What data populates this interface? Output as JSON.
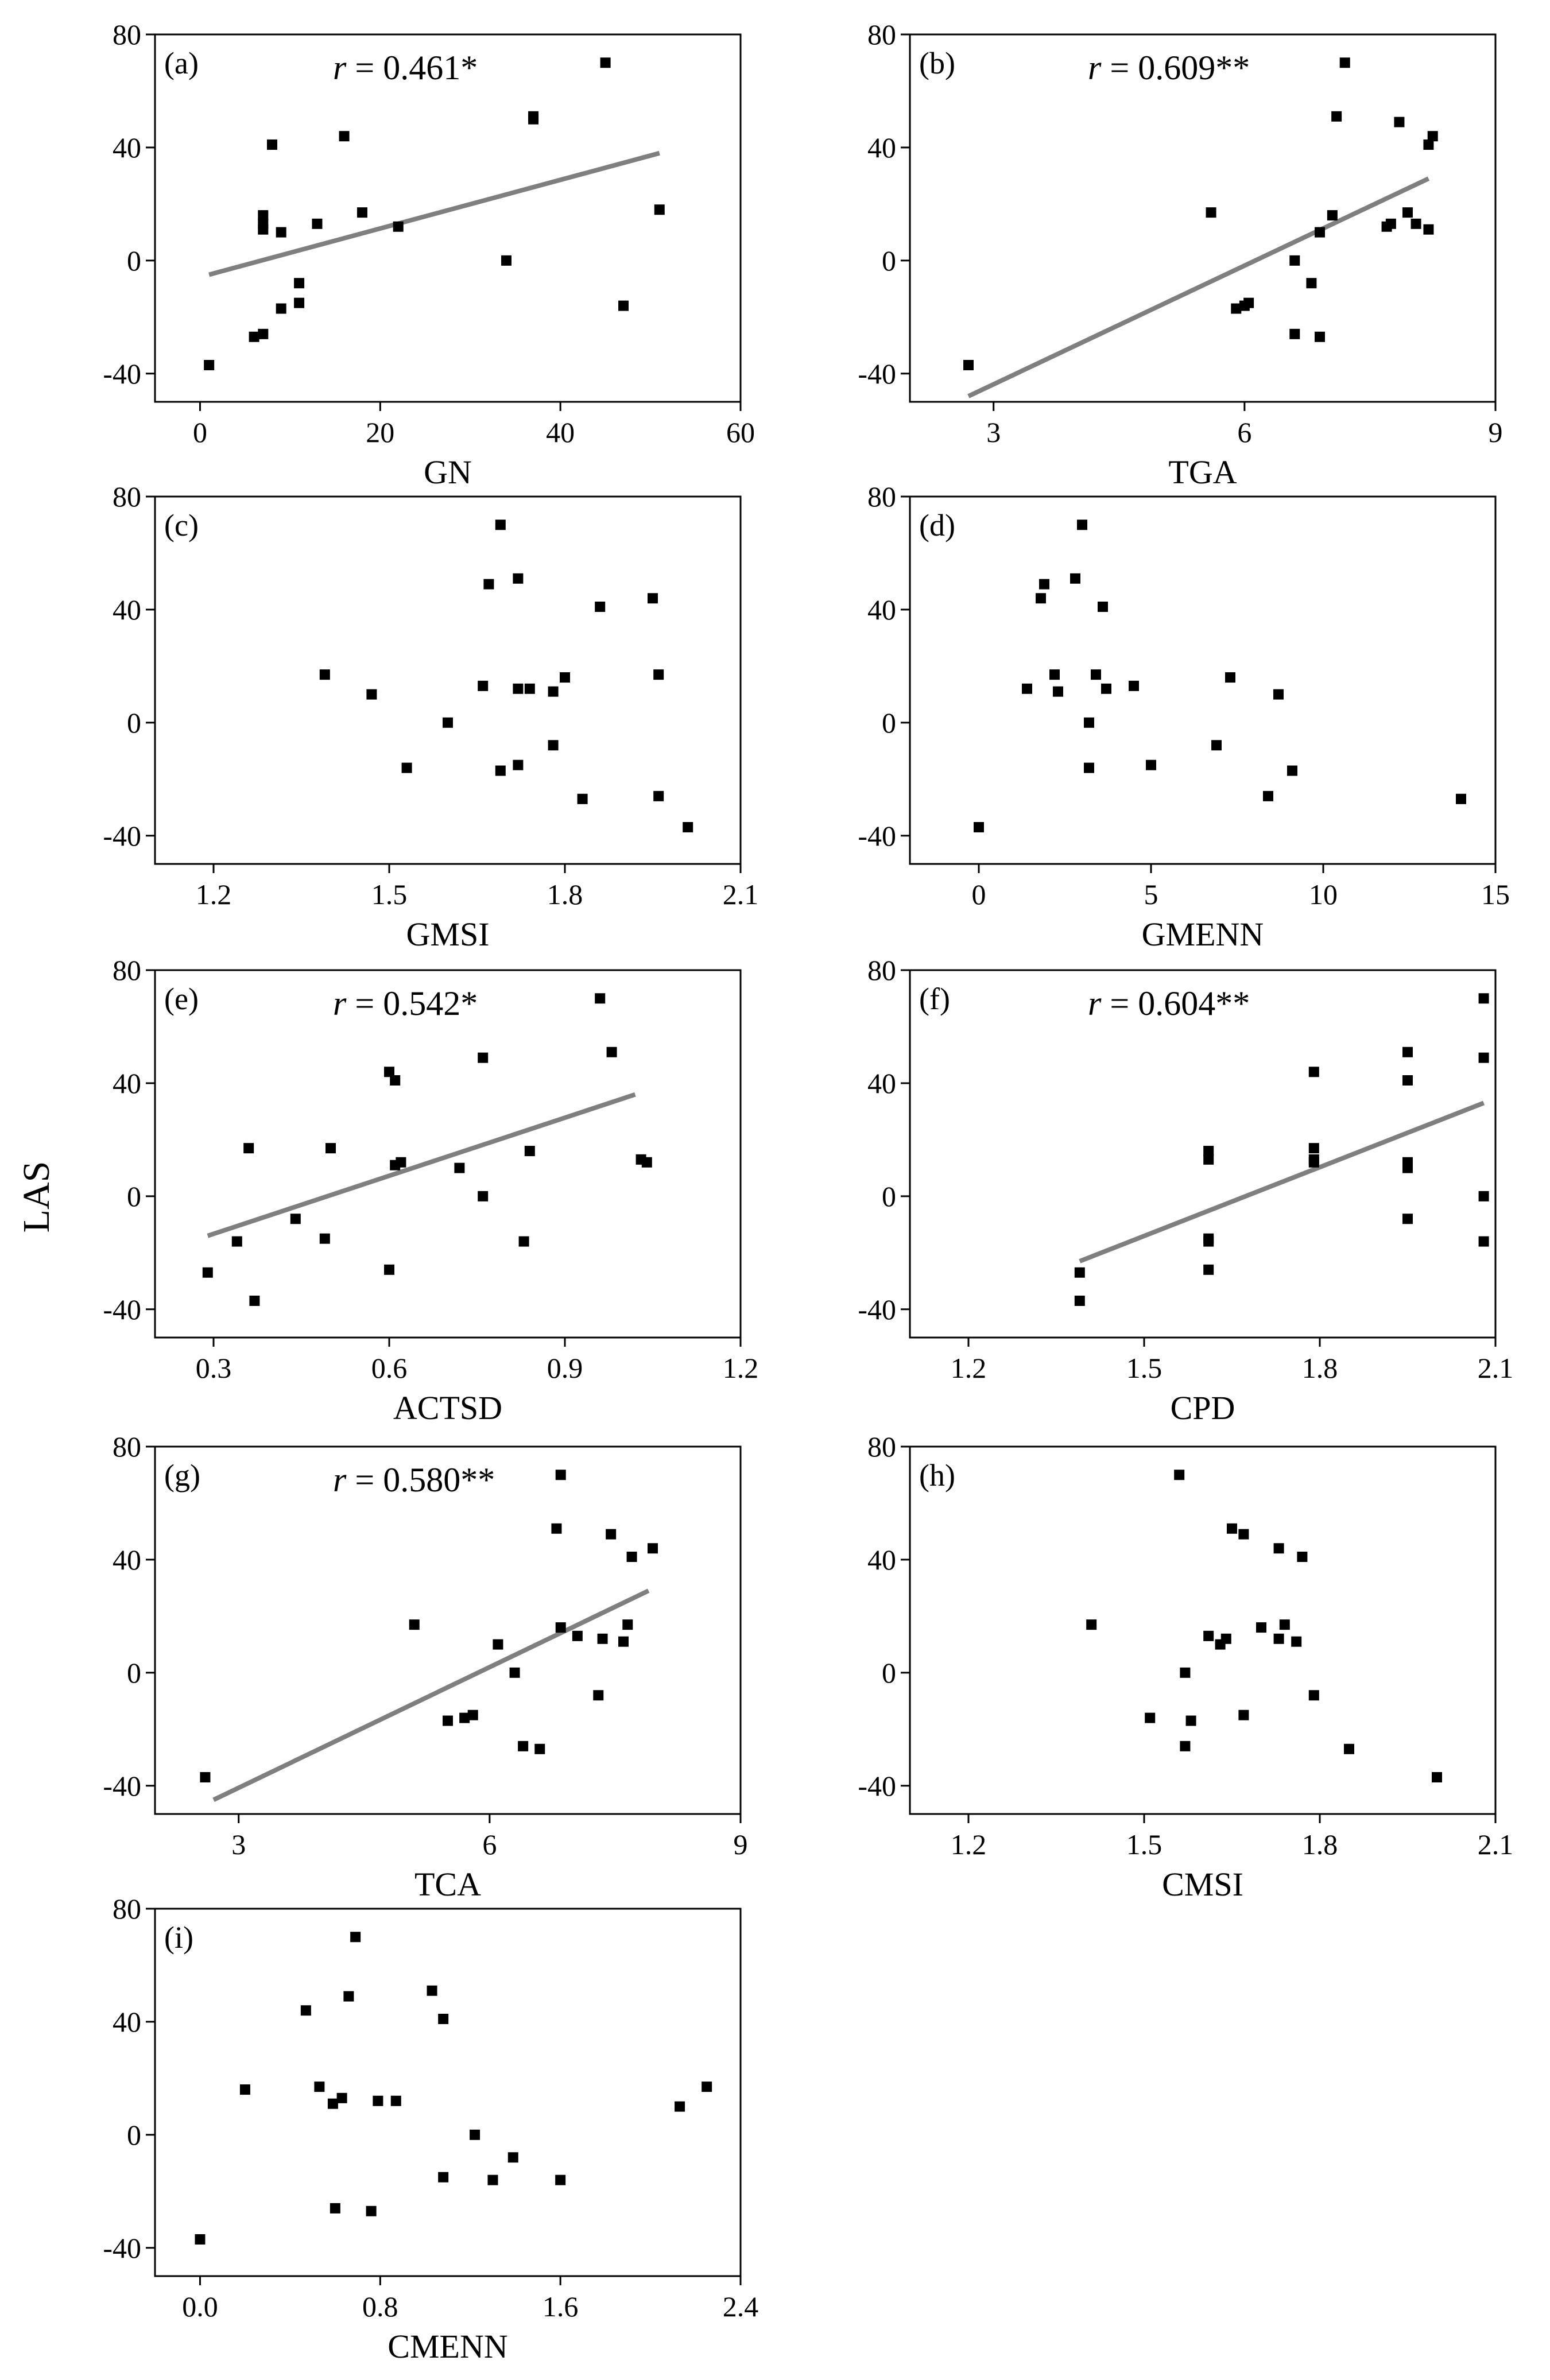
{
  "figure": {
    "ylabel": "LAS"
  },
  "chart_data": [
    {
      "type": "scatter",
      "panel": "(a)",
      "xlabel": "GN",
      "ylabel": "LAS",
      "xlim": [
        -5,
        60
      ],
      "ylim": [
        -50,
        80
      ],
      "xticks": [
        0,
        20,
        40,
        60
      ],
      "xtick_labels": [
        "0",
        "20",
        "40",
        "60"
      ],
      "yticks": [
        -40,
        0,
        40,
        80
      ],
      "ytick_labels": [
        "-40",
        "0",
        "40",
        "80"
      ],
      "annotation": {
        "r_symbol": "r",
        "text": " = 0.461*"
      },
      "points": [
        [
          1,
          -37
        ],
        [
          6,
          -27
        ],
        [
          7,
          -26
        ],
        [
          7,
          16
        ],
        [
          7,
          13
        ],
        [
          7,
          11
        ],
        [
          8,
          41
        ],
        [
          9,
          -17
        ],
        [
          9,
          10
        ],
        [
          11,
          -8
        ],
        [
          11,
          -15
        ],
        [
          13,
          13
        ],
        [
          16,
          44
        ],
        [
          18,
          17
        ],
        [
          22,
          12
        ],
        [
          34,
          0
        ],
        [
          37,
          50
        ],
        [
          37,
          51
        ],
        [
          45,
          70
        ],
        [
          47,
          -16
        ],
        [
          51,
          18
        ]
      ],
      "fit_line": [
        [
          1,
          -5
        ],
        [
          51,
          38
        ]
      ]
    },
    {
      "type": "scatter",
      "panel": "(b)",
      "xlabel": "TGA",
      "ylabel": "LAS",
      "xlim": [
        2,
        9
      ],
      "ylim": [
        -50,
        80
      ],
      "xticks": [
        3,
        6,
        9
      ],
      "xtick_labels": [
        "3",
        "6",
        "9"
      ],
      "yticks": [
        -40,
        0,
        40,
        80
      ],
      "ytick_labels": [
        "-40",
        "0",
        "40",
        "80"
      ],
      "annotation": {
        "r_symbol": "r",
        "text": " = 0.609**"
      },
      "points": [
        [
          2.7,
          -37
        ],
        [
          5.6,
          17
        ],
        [
          5.9,
          -17
        ],
        [
          6.0,
          -16
        ],
        [
          6.05,
          -15
        ],
        [
          6.6,
          0
        ],
        [
          6.6,
          -26
        ],
        [
          6.8,
          -8
        ],
        [
          6.9,
          10
        ],
        [
          6.9,
          -27
        ],
        [
          7.05,
          16
        ],
        [
          7.1,
          51
        ],
        [
          7.2,
          70
        ],
        [
          7.7,
          12
        ],
        [
          7.75,
          13
        ],
        [
          7.85,
          49
        ],
        [
          7.95,
          17
        ],
        [
          8.05,
          13
        ],
        [
          8.2,
          11
        ],
        [
          8.2,
          41
        ],
        [
          8.25,
          44
        ]
      ],
      "fit_line": [
        [
          2.7,
          -48
        ],
        [
          8.2,
          29
        ]
      ]
    },
    {
      "type": "scatter",
      "panel": "(c)",
      "xlabel": "GMSI",
      "ylabel": "LAS",
      "xlim": [
        1.1,
        2.1
      ],
      "ylim": [
        -50,
        80
      ],
      "xticks": [
        1.2,
        1.5,
        1.8,
        2.1
      ],
      "xtick_labels": [
        "1.2",
        "1.5",
        "1.8",
        "2.1"
      ],
      "yticks": [
        -40,
        0,
        40,
        80
      ],
      "ytick_labels": [
        "-40",
        "0",
        "40",
        "80"
      ],
      "annotation": null,
      "points": [
        [
          1.39,
          17
        ],
        [
          1.47,
          10
        ],
        [
          1.53,
          -16
        ],
        [
          1.6,
          0
        ],
        [
          1.66,
          13
        ],
        [
          1.67,
          49
        ],
        [
          1.69,
          70
        ],
        [
          1.69,
          -17
        ],
        [
          1.72,
          51
        ],
        [
          1.72,
          12
        ],
        [
          1.72,
          -15
        ],
        [
          1.74,
          12
        ],
        [
          1.78,
          11
        ],
        [
          1.78,
          -8
        ],
        [
          1.8,
          16
        ],
        [
          1.83,
          -27
        ],
        [
          1.86,
          41
        ],
        [
          1.95,
          44
        ],
        [
          1.96,
          17
        ],
        [
          1.96,
          -26
        ],
        [
          2.01,
          -37
        ]
      ],
      "fit_line": null
    },
    {
      "type": "scatter",
      "panel": "(d)",
      "xlabel": "GMENN",
      "ylabel": "LAS",
      "xlim": [
        -2,
        15
      ],
      "ylim": [
        -50,
        80
      ],
      "xticks": [
        0,
        5,
        10,
        15
      ],
      "xtick_labels": [
        "0",
        "5",
        "10",
        "15"
      ],
      "yticks": [
        -40,
        0,
        40,
        80
      ],
      "ytick_labels": [
        "-40",
        "0",
        "40",
        "80"
      ],
      "annotation": null,
      "points": [
        [
          0,
          -37
        ],
        [
          1.4,
          12
        ],
        [
          1.8,
          44
        ],
        [
          1.9,
          49
        ],
        [
          2.2,
          17
        ],
        [
          2.3,
          11
        ],
        [
          2.8,
          51
        ],
        [
          3.0,
          70
        ],
        [
          3.2,
          0
        ],
        [
          3.2,
          -16
        ],
        [
          3.4,
          17
        ],
        [
          3.6,
          41
        ],
        [
          3.7,
          12
        ],
        [
          4.5,
          13
        ],
        [
          5.0,
          -15
        ],
        [
          6.9,
          -8
        ],
        [
          7.3,
          16
        ],
        [
          8.4,
          -26
        ],
        [
          8.7,
          10
        ],
        [
          9.1,
          -17
        ],
        [
          14.0,
          -27
        ]
      ],
      "fit_line": null
    },
    {
      "type": "scatter",
      "panel": "(e)",
      "xlabel": "ACTSD",
      "ylabel": "LAS",
      "xlim": [
        0.2,
        1.2
      ],
      "ylim": [
        -50,
        80
      ],
      "xticks": [
        0.3,
        0.6,
        0.9,
        1.2
      ],
      "xtick_labels": [
        "0.3",
        "0.6",
        "0.9",
        "1.2"
      ],
      "yticks": [
        -40,
        0,
        40,
        80
      ],
      "ytick_labels": [
        "-40",
        "0",
        "40",
        "80"
      ],
      "annotation": {
        "r_symbol": "r",
        "text": " = 0.542*"
      },
      "points": [
        [
          0.29,
          -27
        ],
        [
          0.34,
          -16
        ],
        [
          0.36,
          17
        ],
        [
          0.37,
          -37
        ],
        [
          0.44,
          -8
        ],
        [
          0.49,
          -15
        ],
        [
          0.5,
          17
        ],
        [
          0.6,
          44
        ],
        [
          0.6,
          -26
        ],
        [
          0.61,
          41
        ],
        [
          0.61,
          11
        ],
        [
          0.62,
          12
        ],
        [
          0.72,
          10
        ],
        [
          0.76,
          49
        ],
        [
          0.76,
          0
        ],
        [
          0.83,
          -16
        ],
        [
          0.84,
          16
        ],
        [
          0.96,
          70
        ],
        [
          0.98,
          51
        ],
        [
          1.03,
          13
        ],
        [
          1.04,
          12
        ]
      ],
      "fit_line": [
        [
          0.29,
          -14
        ],
        [
          1.02,
          36
        ]
      ]
    },
    {
      "type": "scatter",
      "panel": "(f)",
      "xlabel": "CPD",
      "ylabel": "LAS",
      "xlim": [
        1.1,
        2.1
      ],
      "ylim": [
        -50,
        80
      ],
      "xticks": [
        1.2,
        1.5,
        1.8,
        2.1
      ],
      "xtick_labels": [
        "1.2",
        "1.5",
        "1.8",
        "2.1"
      ],
      "yticks": [
        -40,
        0,
        40,
        80
      ],
      "ytick_labels": [
        "-40",
        "0",
        "40",
        "80"
      ],
      "annotation": {
        "r_symbol": "r",
        "text": " = 0.604**"
      },
      "points": [
        [
          1.39,
          -27
        ],
        [
          1.39,
          -37
        ],
        [
          1.61,
          16
        ],
        [
          1.61,
          13
        ],
        [
          1.61,
          -15
        ],
        [
          1.61,
          -16
        ],
        [
          1.61,
          -26
        ],
        [
          1.79,
          44
        ],
        [
          1.79,
          17
        ],
        [
          1.79,
          13
        ],
        [
          1.79,
          12
        ],
        [
          1.95,
          51
        ],
        [
          1.95,
          41
        ],
        [
          1.95,
          12
        ],
        [
          1.95,
          10
        ],
        [
          1.95,
          -8
        ],
        [
          2.08,
          70
        ],
        [
          2.08,
          49
        ],
        [
          2.08,
          0
        ],
        [
          2.08,
          -16
        ]
      ],
      "fit_line": [
        [
          1.39,
          -23
        ],
        [
          2.08,
          33
        ]
      ]
    },
    {
      "type": "scatter",
      "panel": "(g)",
      "xlabel": "TCA",
      "ylabel": "LAS",
      "xlim": [
        2,
        9
      ],
      "ylim": [
        -50,
        80
      ],
      "xticks": [
        3,
        6,
        9
      ],
      "xtick_labels": [
        "3",
        "6",
        "9"
      ],
      "yticks": [
        -40,
        0,
        40,
        80
      ],
      "ytick_labels": [
        "-40",
        "0",
        "40",
        "80"
      ],
      "annotation": {
        "r_symbol": "r",
        "text": " = 0.580**"
      },
      "points": [
        [
          2.6,
          -37
        ],
        [
          5.1,
          17
        ],
        [
          5.5,
          -17
        ],
        [
          5.7,
          -16
        ],
        [
          5.8,
          -15
        ],
        [
          6.1,
          10
        ],
        [
          6.3,
          0
        ],
        [
          6.4,
          -26
        ],
        [
          6.6,
          -27
        ],
        [
          6.8,
          51
        ],
        [
          6.85,
          70
        ],
        [
          6.85,
          16
        ],
        [
          7.05,
          13
        ],
        [
          7.3,
          -8
        ],
        [
          7.35,
          12
        ],
        [
          7.45,
          49
        ],
        [
          7.6,
          11
        ],
        [
          7.65,
          17
        ],
        [
          7.7,
          41
        ],
        [
          7.95,
          44
        ]
      ],
      "fit_line": [
        [
          2.7,
          -45
        ],
        [
          7.9,
          29
        ]
      ]
    },
    {
      "type": "scatter",
      "panel": "(h)",
      "xlabel": "CMSI",
      "ylabel": "LAS",
      "xlim": [
        1.1,
        2.1
      ],
      "ylim": [
        -50,
        80
      ],
      "xticks": [
        1.2,
        1.5,
        1.8,
        2.1
      ],
      "xtick_labels": [
        "1.2",
        "1.5",
        "1.8",
        "2.1"
      ],
      "yticks": [
        -40,
        0,
        40,
        80
      ],
      "ytick_labels": [
        "-40",
        "0",
        "40",
        "80"
      ],
      "annotation": null,
      "points": [
        [
          1.41,
          17
        ],
        [
          1.51,
          -16
        ],
        [
          1.56,
          70
        ],
        [
          1.57,
          0
        ],
        [
          1.57,
          -26
        ],
        [
          1.58,
          -17
        ],
        [
          1.61,
          13
        ],
        [
          1.63,
          10
        ],
        [
          1.64,
          12
        ],
        [
          1.65,
          51
        ],
        [
          1.67,
          49
        ],
        [
          1.67,
          -15
        ],
        [
          1.7,
          16
        ],
        [
          1.73,
          44
        ],
        [
          1.73,
          12
        ],
        [
          1.74,
          17
        ],
        [
          1.76,
          11
        ],
        [
          1.77,
          41
        ],
        [
          1.79,
          -8
        ],
        [
          1.85,
          -27
        ],
        [
          2.0,
          -37
        ]
      ],
      "fit_line": null
    },
    {
      "type": "scatter",
      "panel": "(i)",
      "xlabel": "CMENN",
      "ylabel": "LAS",
      "xlim": [
        -0.2,
        2.4
      ],
      "ylim": [
        -50,
        80
      ],
      "xticks": [
        0.0,
        0.8,
        1.6,
        2.4
      ],
      "xtick_labels": [
        "0.0",
        "0.8",
        "1.6",
        "2.4"
      ],
      "yticks": [
        -40,
        0,
        40,
        80
      ],
      "ytick_labels": [
        "-40",
        "0",
        "40",
        "80"
      ],
      "annotation": null,
      "points": [
        [
          0,
          -37
        ],
        [
          0.2,
          16
        ],
        [
          0.47,
          44
        ],
        [
          0.53,
          17
        ],
        [
          0.59,
          11
        ],
        [
          0.6,
          -26
        ],
        [
          0.63,
          13
        ],
        [
          0.66,
          49
        ],
        [
          0.69,
          70
        ],
        [
          0.76,
          -27
        ],
        [
          0.79,
          12
        ],
        [
          0.87,
          12
        ],
        [
          1.03,
          51
        ],
        [
          1.08,
          41
        ],
        [
          1.08,
          -15
        ],
        [
          1.22,
          0
        ],
        [
          1.3,
          -16
        ],
        [
          1.39,
          -8
        ],
        [
          1.6,
          -16
        ],
        [
          2.13,
          10
        ],
        [
          2.25,
          17
        ]
      ],
      "fit_line": null
    }
  ]
}
